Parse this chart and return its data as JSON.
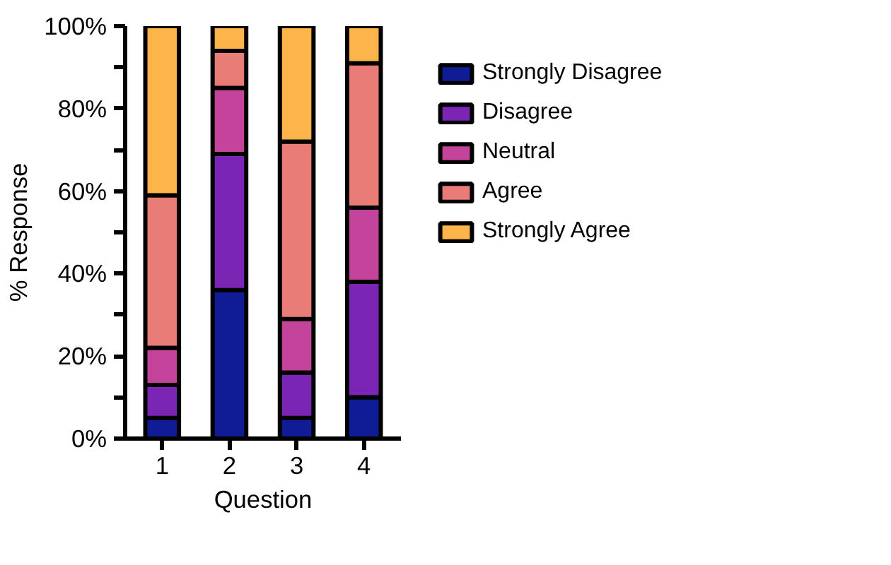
{
  "chart_data": {
    "type": "bar",
    "stacked": true,
    "xlabel": "Question",
    "ylabel": "% Response",
    "categories": [
      "1",
      "2",
      "3",
      "4"
    ],
    "series": [
      {
        "name": "Strongly Disagree",
        "color": "#101c96",
        "values": [
          5,
          36,
          5,
          10
        ]
      },
      {
        "name": "Disagree",
        "color": "#7b25b5",
        "values": [
          8,
          33,
          11,
          28
        ]
      },
      {
        "name": "Neutral",
        "color": "#c4449c",
        "values": [
          9,
          16,
          13,
          18
        ]
      },
      {
        "name": "Agree",
        "color": "#e97c77",
        "values": [
          37,
          9,
          43,
          35
        ]
      },
      {
        "name": "Strongly Agree",
        "color": "#fdb44b",
        "values": [
          41,
          6,
          28,
          9
        ]
      }
    ],
    "ylim": [
      0,
      100
    ],
    "yticks": [
      {
        "value": 0,
        "label": "0%"
      },
      {
        "value": 10,
        "label": null
      },
      {
        "value": 20,
        "label": "20%"
      },
      {
        "value": 30,
        "label": null
      },
      {
        "value": 40,
        "label": "40%"
      },
      {
        "value": 50,
        "label": null
      },
      {
        "value": 60,
        "label": "60%"
      },
      {
        "value": 70,
        "label": null
      },
      {
        "value": 80,
        "label": "80%"
      },
      {
        "value": 90,
        "label": null
      },
      {
        "value": 100,
        "label": "100%"
      }
    ],
    "grid": false,
    "legend": "right"
  }
}
